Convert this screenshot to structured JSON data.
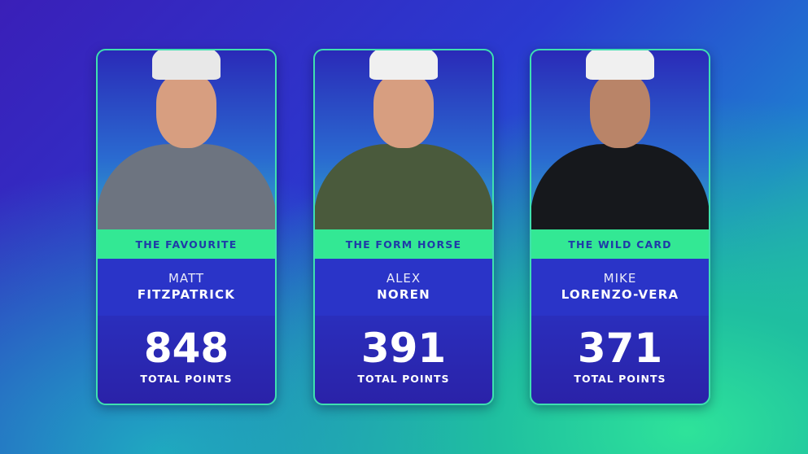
{
  "cards": [
    {
      "tag": "THE FAVOURITE",
      "first_name": "MATT",
      "last_name": "FITZPATRICK",
      "points": "848",
      "points_label": "TOTAL POINTS",
      "shirt_color": "#6d7480",
      "cap_color": "#d8d8d8"
    },
    {
      "tag": "THE FORM HORSE",
      "first_name": "ALEX",
      "last_name": "NOREN",
      "points": "391",
      "points_label": "TOTAL POINTS",
      "shirt_color": "#4a5a3c",
      "cap_color": "#f0f0f0"
    },
    {
      "tag": "THE WILD CARD",
      "first_name": "MIKE",
      "last_name": "LORENZO-VERA",
      "points": "371",
      "points_label": "TOTAL POINTS",
      "shirt_color": "#16181c",
      "cap_color": "#f0f0f0"
    }
  ],
  "colors": {
    "accent": "#33e894",
    "card_blue": "#2a34c8"
  }
}
